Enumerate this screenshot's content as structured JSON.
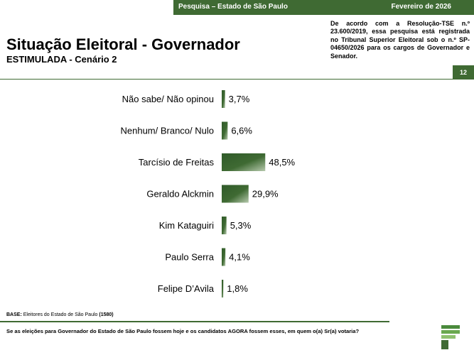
{
  "header": {
    "survey": "Pesquisa – Estado de São Paulo",
    "month": "Fevereiro de 2026"
  },
  "tse_note": "De acordo com a Resolução-TSE n.º 23.600/2019, essa pesquisa está registrada no Tribunal Superior Eleitoral sob o n.º SP-04650/2026 para os cargos de Governador e Senador.",
  "title": "Situação Eleitoral - Governador",
  "subtitle": "ESTIMULADA - Cenário 2",
  "page_number": "12",
  "footer": {
    "base_label": "BASE:",
    "base_text": "Eleitores do Estado de São Paulo",
    "base_count": "(1580)",
    "question": "Se as eleições para Governador do Estado de São Paulo fossem hoje e os candidatos AGORA fossem esses, em quem o(a) Sr(a) votaria?"
  },
  "colors": {
    "brand_green": "#3f6a33",
    "bar_dark": "#2f5a29",
    "bar_light": "#b6c9ad"
  },
  "chart_data": {
    "type": "bar",
    "orientation": "horizontal",
    "categories": [
      "Não sabe/ Não opinou",
      "Nenhum/ Branco/ Nulo",
      "Tarcísio de Freitas",
      "Geraldo Alckmin",
      "Kim Kataguiri",
      "Paulo Serra",
      "Felipe D’Avila"
    ],
    "values": [
      3.7,
      6.6,
      48.5,
      29.9,
      5.3,
      4.1,
      1.8
    ],
    "value_labels": [
      "3,7%",
      "6,6%",
      "48,5%",
      "29,9%",
      "5,3%",
      "4,1%",
      "1,8%"
    ],
    "unit": "%",
    "grid": false,
    "legend": "none"
  }
}
